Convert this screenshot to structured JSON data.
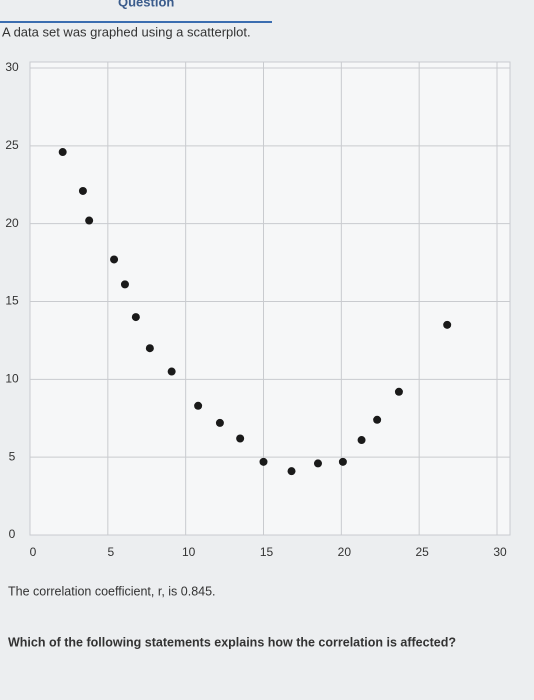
{
  "header": {
    "title": "Question"
  },
  "intro": "A data set was graphed using a scatterplot.",
  "chart_data": {
    "type": "scatter",
    "x": [
      2.1,
      3.4,
      3.8,
      5.4,
      6.1,
      6.8,
      7.7,
      9.1,
      10.8,
      12.2,
      13.5,
      15.0,
      16.8,
      18.5,
      20.1,
      21.3,
      22.3,
      23.7,
      26.8
    ],
    "values": [
      24.6,
      22.1,
      20.2,
      17.7,
      16.1,
      14.0,
      12.0,
      10.5,
      8.3,
      7.2,
      6.2,
      4.7,
      4.1,
      4.6,
      4.7,
      6.1,
      7.4,
      9.2,
      13.5
    ],
    "color": "#1a1a1a",
    "xlim": [
      0,
      30
    ],
    "ylim": [
      0,
      30
    ],
    "xticks": [
      0,
      5,
      10,
      15,
      20,
      25,
      30
    ],
    "yticks": [
      0,
      5,
      10,
      15,
      20,
      25,
      30
    ],
    "grid": true
  },
  "statement": "The correlation coefficient, r, is 0.845.",
  "question": "Which of the following statements explains how the correlation is affected?"
}
